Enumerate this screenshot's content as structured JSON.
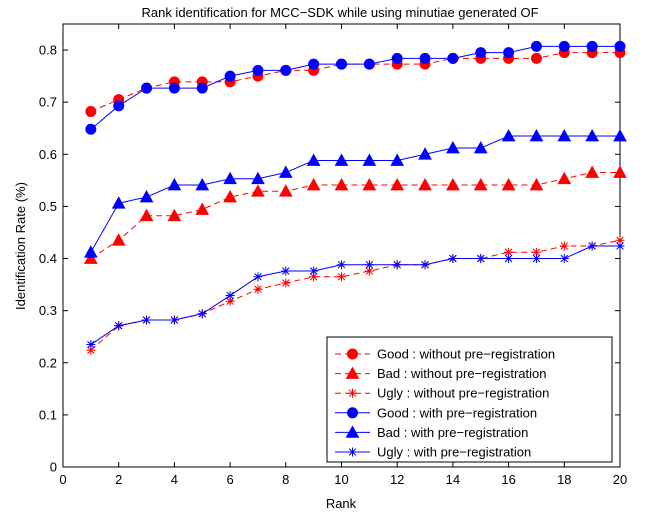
{
  "chart_data": {
    "type": "line",
    "title": "Rank identification for MCC−SDK while using minutiae generated OF",
    "xlabel": "Rank",
    "ylabel": "Identification Rate (%)",
    "xlim": [
      0,
      20
    ],
    "ylim": [
      0,
      0.85
    ],
    "xticks": [
      0,
      2,
      4,
      6,
      8,
      10,
      12,
      14,
      16,
      18,
      20
    ],
    "xtick_labels": [
      "0",
      "2",
      "4",
      "6",
      "8",
      "10",
      "12",
      "14",
      "16",
      "18",
      "20"
    ],
    "yticks": [
      0,
      0.1,
      0.2,
      0.3,
      0.4,
      0.5,
      0.6,
      0.7,
      0.8
    ],
    "ytick_labels": [
      "0",
      "0.1",
      "0.2",
      "0.3",
      "0.4",
      "0.5",
      "0.6",
      "0.7",
      "0.8"
    ],
    "grid": false,
    "legend_position": "bottom-right",
    "x": [
      1,
      2,
      3,
      4,
      5,
      6,
      7,
      8,
      9,
      10,
      11,
      12,
      13,
      14,
      15,
      16,
      17,
      18,
      19,
      20
    ],
    "series": [
      {
        "name": "Good : without pre−registration",
        "color": "#ff0000",
        "line": "dashed",
        "marker": "circle",
        "values": [
          0.682,
          0.705,
          0.727,
          0.739,
          0.739,
          0.739,
          0.75,
          0.761,
          0.761,
          0.773,
          0.773,
          0.773,
          0.773,
          0.784,
          0.784,
          0.784,
          0.784,
          0.795,
          0.795,
          0.795
        ]
      },
      {
        "name": "Bad : without pre−registration",
        "color": "#ff0000",
        "line": "dashed",
        "marker": "triangle",
        "values": [
          0.4,
          0.435,
          0.482,
          0.482,
          0.494,
          0.518,
          0.529,
          0.529,
          0.541,
          0.541,
          0.541,
          0.541,
          0.541,
          0.541,
          0.541,
          0.541,
          0.541,
          0.553,
          0.565,
          0.565
        ]
      },
      {
        "name": "Ugly : without pre−registration",
        "color": "#ff0000",
        "line": "dashed",
        "marker": "star",
        "values": [
          0.224,
          0.271,
          0.282,
          0.282,
          0.294,
          0.318,
          0.341,
          0.353,
          0.365,
          0.365,
          0.376,
          0.388,
          0.388,
          0.4,
          0.4,
          0.412,
          0.412,
          0.424,
          0.424,
          0.435
        ]
      },
      {
        "name": "Good : with pre−registration",
        "color": "#0000ff",
        "line": "solid",
        "marker": "circle",
        "values": [
          0.648,
          0.693,
          0.727,
          0.727,
          0.727,
          0.75,
          0.761,
          0.761,
          0.773,
          0.773,
          0.773,
          0.784,
          0.784,
          0.784,
          0.795,
          0.795,
          0.807,
          0.807,
          0.807,
          0.807
        ]
      },
      {
        "name": "Bad : with pre−registration",
        "color": "#0000ff",
        "line": "solid",
        "marker": "triangle",
        "values": [
          0.412,
          0.506,
          0.518,
          0.541,
          0.541,
          0.553,
          0.553,
          0.565,
          0.588,
          0.588,
          0.588,
          0.588,
          0.6,
          0.612,
          0.612,
          0.635,
          0.635,
          0.635,
          0.635,
          0.635
        ]
      },
      {
        "name": "Ugly : with pre−registration",
        "color": "#0000ff",
        "line": "solid",
        "marker": "star",
        "values": [
          0.235,
          0.271,
          0.282,
          0.282,
          0.294,
          0.329,
          0.365,
          0.376,
          0.376,
          0.388,
          0.388,
          0.388,
          0.388,
          0.4,
          0.4,
          0.4,
          0.4,
          0.4,
          0.424,
          0.424
        ]
      }
    ]
  }
}
